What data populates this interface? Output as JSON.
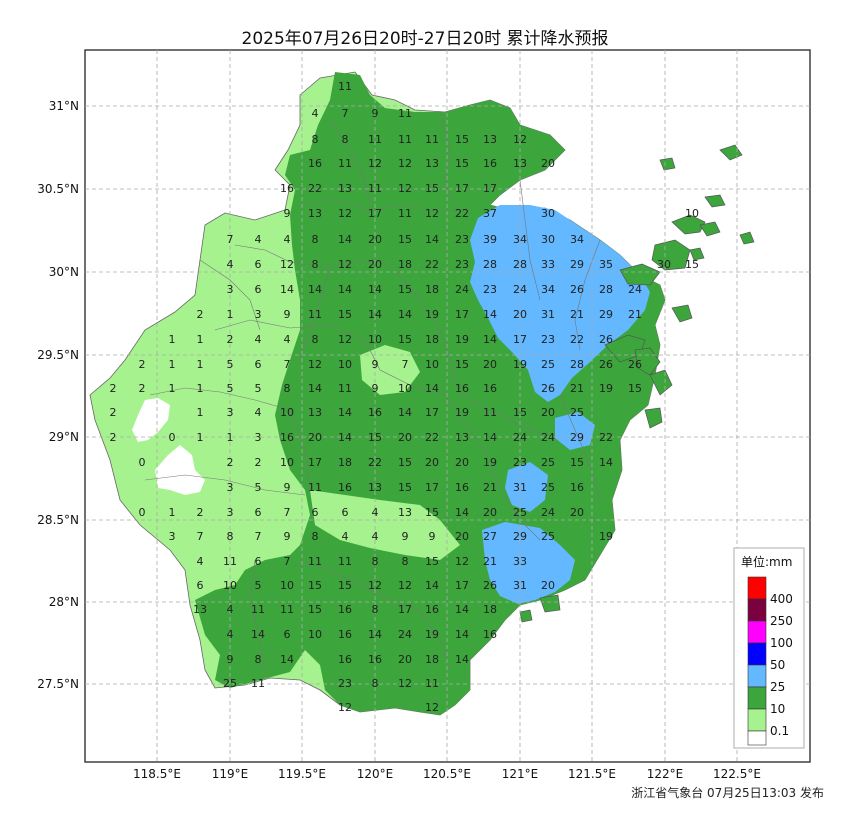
{
  "title": "2025年07月26日20时-27日20时 累计降水预报",
  "issuer": "浙江省气象台 07月25日13:03 发布",
  "axes": {
    "lon_ticks": [
      "118.5°E",
      "119°E",
      "119.5°E",
      "120°E",
      "120.5°E",
      "121°E",
      "121.5°E",
      "122°E",
      "122.5°E"
    ],
    "lat_ticks": [
      "31°N",
      "30.5°N",
      "30°N",
      "29.5°N",
      "29°N",
      "28.5°N",
      "28°N",
      "27.5°N"
    ]
  },
  "legend": {
    "title": "单位:mm",
    "levels": [
      {
        "label": "400",
        "color": "#ff0000"
      },
      {
        "label": "250",
        "color": "#7a0040"
      },
      {
        "label": "100",
        "color": "#ff00ff"
      },
      {
        "label": "50",
        "color": "#0000ff"
      },
      {
        "label": "25",
        "color": "#63b8ff"
      },
      {
        "label": "10",
        "color": "#3ca63c"
      },
      {
        "label": "0.1",
        "color": "#a6f28f"
      }
    ],
    "lowest_color": "#ffffff"
  },
  "colors": {
    "light_green": "#a6f28f",
    "green": "#3ca63c",
    "blue": "#63b8ff",
    "grid": "#aaaaaa",
    "boundary": "#777777"
  },
  "values": [
    {
      "v": "11"
    },
    {
      "v": "4"
    },
    {
      "v": "7"
    },
    {
      "v": "9"
    },
    {
      "v": "11"
    },
    {
      "v": "8"
    },
    {
      "v": "8"
    },
    {
      "v": "11"
    },
    {
      "v": "11"
    },
    {
      "v": "11"
    },
    {
      "v": "15"
    },
    {
      "v": "13"
    },
    {
      "v": "12"
    },
    {
      "v": "16"
    },
    {
      "v": "11"
    },
    {
      "v": "12"
    },
    {
      "v": "12"
    },
    {
      "v": "13"
    },
    {
      "v": "15"
    },
    {
      "v": "16"
    },
    {
      "v": "13"
    },
    {
      "v": "20"
    },
    {
      "v": "16"
    },
    {
      "v": "22"
    },
    {
      "v": "13"
    },
    {
      "v": "11"
    },
    {
      "v": "12"
    },
    {
      "v": "15"
    },
    {
      "v": "17"
    },
    {
      "v": "17"
    },
    {
      "v": "9"
    },
    {
      "v": "13"
    },
    {
      "v": "12"
    },
    {
      "v": "17"
    },
    {
      "v": "11"
    },
    {
      "v": "12"
    },
    {
      "v": "22"
    },
    {
      "v": "37"
    },
    {
      "v": "30"
    },
    {
      "v": "10"
    },
    {
      "v": "7"
    },
    {
      "v": "4"
    },
    {
      "v": "4"
    },
    {
      "v": "8"
    },
    {
      "v": "14"
    },
    {
      "v": "20"
    },
    {
      "v": "15"
    },
    {
      "v": "14"
    },
    {
      "v": "23"
    },
    {
      "v": "39"
    },
    {
      "v": "34"
    },
    {
      "v": "30"
    },
    {
      "v": "34"
    },
    {
      "v": "4"
    },
    {
      "v": "6"
    },
    {
      "v": "12"
    },
    {
      "v": "8"
    },
    {
      "v": "12"
    },
    {
      "v": "20"
    },
    {
      "v": "18"
    },
    {
      "v": "22"
    },
    {
      "v": "23"
    },
    {
      "v": "28"
    },
    {
      "v": "28"
    },
    {
      "v": "33"
    },
    {
      "v": "29"
    },
    {
      "v": "35"
    },
    {
      "v": "30"
    },
    {
      "v": "15"
    },
    {
      "v": "3"
    },
    {
      "v": "6"
    },
    {
      "v": "14"
    },
    {
      "v": "14"
    },
    {
      "v": "14"
    },
    {
      "v": "14"
    },
    {
      "v": "15"
    },
    {
      "v": "18"
    },
    {
      "v": "24"
    },
    {
      "v": "23"
    },
    {
      "v": "24"
    },
    {
      "v": "34"
    },
    {
      "v": "26"
    },
    {
      "v": "28"
    },
    {
      "v": "24"
    },
    {
      "v": "2"
    },
    {
      "v": "1"
    },
    {
      "v": "3"
    },
    {
      "v": "9"
    },
    {
      "v": "11"
    },
    {
      "v": "15"
    },
    {
      "v": "14"
    },
    {
      "v": "14"
    },
    {
      "v": "19"
    },
    {
      "v": "17"
    },
    {
      "v": "14"
    },
    {
      "v": "20"
    },
    {
      "v": "31"
    },
    {
      "v": "21"
    },
    {
      "v": "29"
    },
    {
      "v": "21"
    },
    {
      "v": "1"
    },
    {
      "v": "1"
    },
    {
      "v": "2"
    },
    {
      "v": "4"
    },
    {
      "v": "4"
    },
    {
      "v": "8"
    },
    {
      "v": "12"
    },
    {
      "v": "10"
    },
    {
      "v": "15"
    },
    {
      "v": "18"
    },
    {
      "v": "19"
    },
    {
      "v": "14"
    },
    {
      "v": "17"
    },
    {
      "v": "23"
    },
    {
      "v": "22"
    },
    {
      "v": "26"
    },
    {
      "v": "2"
    },
    {
      "v": "1"
    },
    {
      "v": "1"
    },
    {
      "v": "5"
    },
    {
      "v": "6"
    },
    {
      "v": "7"
    },
    {
      "v": "12"
    },
    {
      "v": "10"
    },
    {
      "v": "9"
    },
    {
      "v": "7"
    },
    {
      "v": "10"
    },
    {
      "v": "15"
    },
    {
      "v": "20"
    },
    {
      "v": "19"
    },
    {
      "v": "25"
    },
    {
      "v": "28"
    },
    {
      "v": "26"
    },
    {
      "v": "26"
    },
    {
      "v": "2"
    },
    {
      "v": "2"
    },
    {
      "v": "1"
    },
    {
      "v": "1"
    },
    {
      "v": "5"
    },
    {
      "v": "5"
    },
    {
      "v": "8"
    },
    {
      "v": "14"
    },
    {
      "v": "11"
    },
    {
      "v": "9"
    },
    {
      "v": "10"
    },
    {
      "v": "14"
    },
    {
      "v": "16"
    },
    {
      "v": "16"
    },
    {
      "v": "26"
    },
    {
      "v": "21"
    },
    {
      "v": "19"
    },
    {
      "v": "15"
    },
    {
      "v": "2"
    },
    {
      "v": "1"
    },
    {
      "v": "3"
    },
    {
      "v": "4"
    },
    {
      "v": "10"
    },
    {
      "v": "13"
    },
    {
      "v": "14"
    },
    {
      "v": "16"
    },
    {
      "v": "14"
    },
    {
      "v": "17"
    },
    {
      "v": "19"
    },
    {
      "v": "11"
    },
    {
      "v": "15"
    },
    {
      "v": "20"
    },
    {
      "v": "25"
    },
    {
      "v": "2"
    },
    {
      "v": "0"
    },
    {
      "v": "1"
    },
    {
      "v": "1"
    },
    {
      "v": "3"
    },
    {
      "v": "16"
    },
    {
      "v": "20"
    },
    {
      "v": "14"
    },
    {
      "v": "15"
    },
    {
      "v": "20"
    },
    {
      "v": "22"
    },
    {
      "v": "13"
    },
    {
      "v": "14"
    },
    {
      "v": "24"
    },
    {
      "v": "24"
    },
    {
      "v": "29"
    },
    {
      "v": "22"
    },
    {
      "v": "0"
    },
    {
      "v": "2"
    },
    {
      "v": "2"
    },
    {
      "v": "10"
    },
    {
      "v": "17"
    },
    {
      "v": "18"
    },
    {
      "v": "22"
    },
    {
      "v": "15"
    },
    {
      "v": "20"
    },
    {
      "v": "20"
    },
    {
      "v": "19"
    },
    {
      "v": "23"
    },
    {
      "v": "25"
    },
    {
      "v": "15"
    },
    {
      "v": "14"
    },
    {
      "v": "3"
    },
    {
      "v": "5"
    },
    {
      "v": "9"
    },
    {
      "v": "11"
    },
    {
      "v": "16"
    },
    {
      "v": "13"
    },
    {
      "v": "15"
    },
    {
      "v": "17"
    },
    {
      "v": "16"
    },
    {
      "v": "21"
    },
    {
      "v": "31"
    },
    {
      "v": "25"
    },
    {
      "v": "16"
    },
    {
      "v": "0"
    },
    {
      "v": "1"
    },
    {
      "v": "2"
    },
    {
      "v": "3"
    },
    {
      "v": "6"
    },
    {
      "v": "7"
    },
    {
      "v": "6"
    },
    {
      "v": "6"
    },
    {
      "v": "4"
    },
    {
      "v": "13"
    },
    {
      "v": "15"
    },
    {
      "v": "14"
    },
    {
      "v": "20"
    },
    {
      "v": "25"
    },
    {
      "v": "24"
    },
    {
      "v": "20"
    },
    {
      "v": "3"
    },
    {
      "v": "7"
    },
    {
      "v": "8"
    },
    {
      "v": "7"
    },
    {
      "v": "9"
    },
    {
      "v": "8"
    },
    {
      "v": "4"
    },
    {
      "v": "4"
    },
    {
      "v": "9"
    },
    {
      "v": "9"
    },
    {
      "v": "20"
    },
    {
      "v": "27"
    },
    {
      "v": "29"
    },
    {
      "v": "25"
    },
    {
      "v": "19"
    },
    {
      "v": "4"
    },
    {
      "v": "11"
    },
    {
      "v": "6"
    },
    {
      "v": "7"
    },
    {
      "v": "11"
    },
    {
      "v": "11"
    },
    {
      "v": "8"
    },
    {
      "v": "8"
    },
    {
      "v": "15"
    },
    {
      "v": "12"
    },
    {
      "v": "21"
    },
    {
      "v": "33"
    },
    {
      "v": "6"
    },
    {
      "v": "10"
    },
    {
      "v": "5"
    },
    {
      "v": "10"
    },
    {
      "v": "15"
    },
    {
      "v": "15"
    },
    {
      "v": "12"
    },
    {
      "v": "12"
    },
    {
      "v": "14"
    },
    {
      "v": "17"
    },
    {
      "v": "26"
    },
    {
      "v": "31"
    },
    {
      "v": "20"
    },
    {
      "v": "13"
    },
    {
      "v": "4"
    },
    {
      "v": "11"
    },
    {
      "v": "11"
    },
    {
      "v": "15"
    },
    {
      "v": "16"
    },
    {
      "v": "8"
    },
    {
      "v": "17"
    },
    {
      "v": "16"
    },
    {
      "v": "14"
    },
    {
      "v": "18"
    },
    {
      "v": "4"
    },
    {
      "v": "14"
    },
    {
      "v": "6"
    },
    {
      "v": "10"
    },
    {
      "v": "16"
    },
    {
      "v": "14"
    },
    {
      "v": "24"
    },
    {
      "v": "19"
    },
    {
      "v": "14"
    },
    {
      "v": "16"
    },
    {
      "v": "9"
    },
    {
      "v": "8"
    },
    {
      "v": "14"
    },
    {
      "v": "16"
    },
    {
      "v": "16"
    },
    {
      "v": "20"
    },
    {
      "v": "18"
    },
    {
      "v": "14"
    },
    {
      "v": "25"
    },
    {
      "v": "11"
    },
    {
      "v": "23"
    },
    {
      "v": "8"
    },
    {
      "v": "12"
    },
    {
      "v": "11"
    },
    {
      "v": "12"
    },
    {
      "v": "12"
    }
  ]
}
